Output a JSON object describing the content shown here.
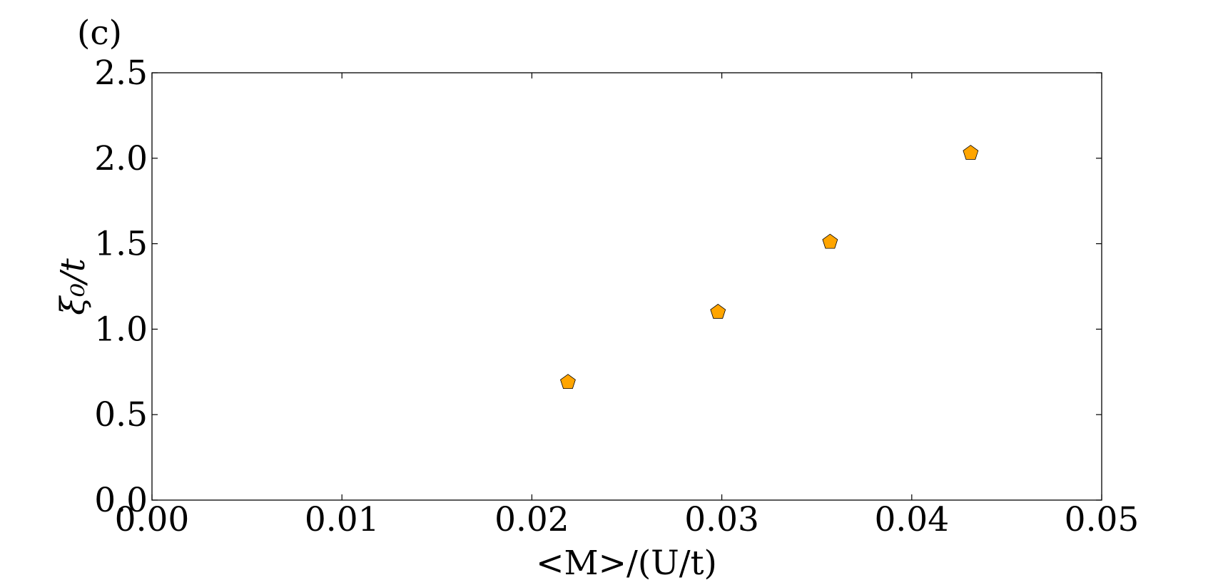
{
  "chart_data": {
    "type": "scatter",
    "panel_label": "(c)",
    "x_label": "<M>/(U/t)",
    "y_label": "ξ₀/t",
    "series": [
      {
        "color": "#ffa500",
        "x": [
          0.0219,
          0.0298,
          0.0357,
          0.0431
        ],
        "values": [
          0.69,
          1.1,
          1.51,
          2.03
        ]
      }
    ],
    "xlim": [
      0,
      0.05
    ],
    "ylim": [
      0,
      2.5
    ],
    "xticks": [
      {
        "value": 0,
        "label": "0.00"
      },
      0.01,
      0.02,
      0.03,
      0.04,
      0.05
    ],
    "yticks": [
      {
        "value": 0,
        "label": "0.0"
      },
      0.5,
      {
        "value": 1,
        "label": "1.0"
      },
      1.5,
      {
        "value": 2,
        "label": "2.0"
      },
      2.5
    ],
    "marker": "pentagon"
  }
}
